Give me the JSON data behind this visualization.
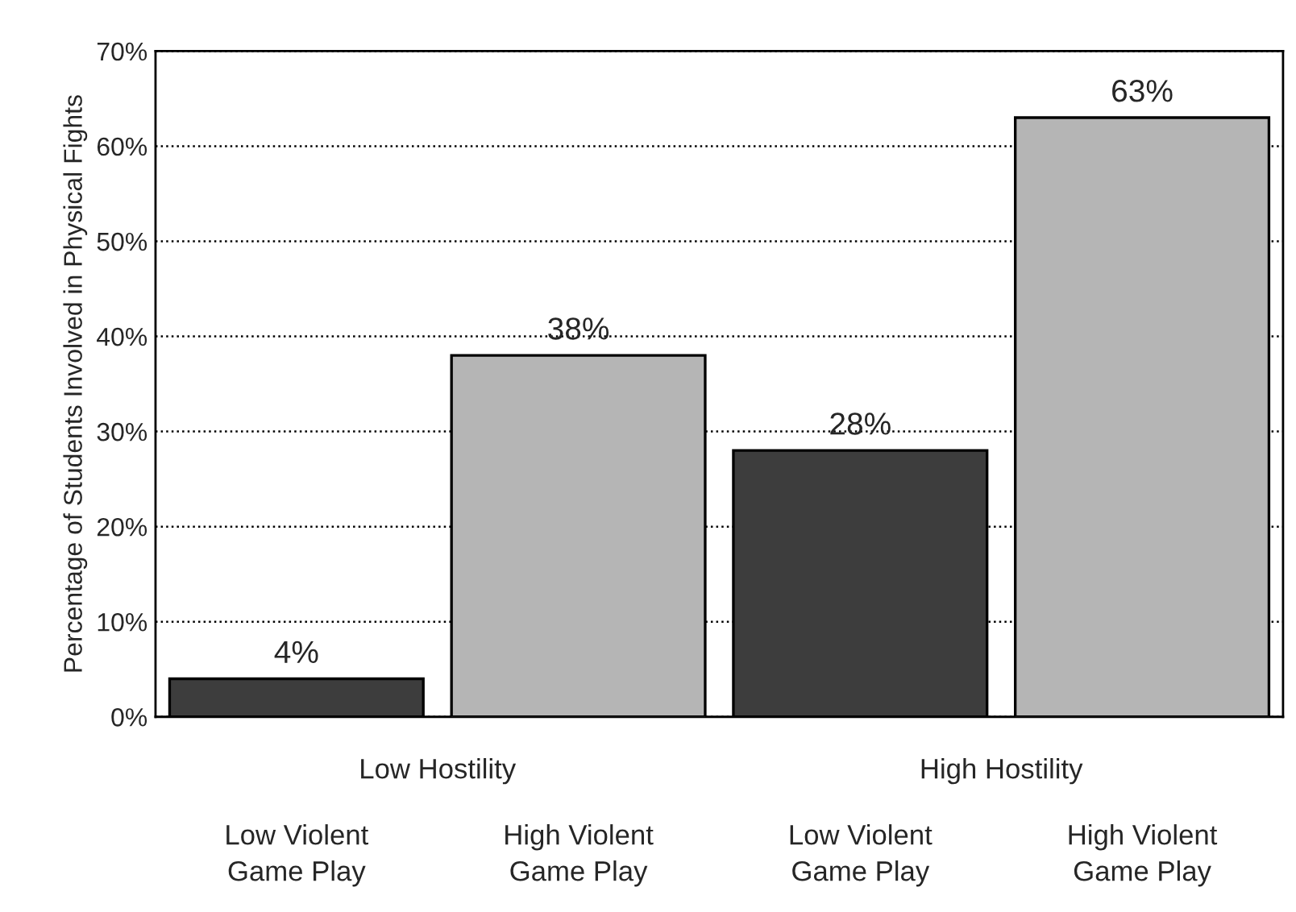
{
  "chart_data": {
    "type": "bar",
    "ylabel": "Percentage of Students Involved in Physical Fights",
    "categories": [
      "Low Violent Game Play",
      "High Violent Game Play",
      "Low Violent Game Play",
      "High Violent Game Play"
    ],
    "values": [
      4,
      38,
      28,
      63
    ],
    "colors": [
      "#3d3d3d",
      "#b5b5b5",
      "#3d3d3d",
      "#b5b5b5"
    ],
    "value_labels": [
      "4%",
      "38%",
      "28%",
      "63%"
    ],
    "annotations": [
      "Low Hostility",
      "High Hostility"
    ],
    "ylim": [
      0,
      70
    ],
    "yticks": [
      {
        "value": 0,
        "label": "0%"
      },
      {
        "value": 10,
        "label": "10%"
      },
      {
        "value": 20,
        "label": "20%"
      },
      {
        "value": 30,
        "label": "30%"
      },
      {
        "value": 40,
        "label": "40%"
      },
      {
        "value": 50,
        "label": "50%"
      },
      {
        "value": 60,
        "label": "60%"
      },
      {
        "value": 70,
        "label": "70%"
      }
    ],
    "grid": "y"
  }
}
